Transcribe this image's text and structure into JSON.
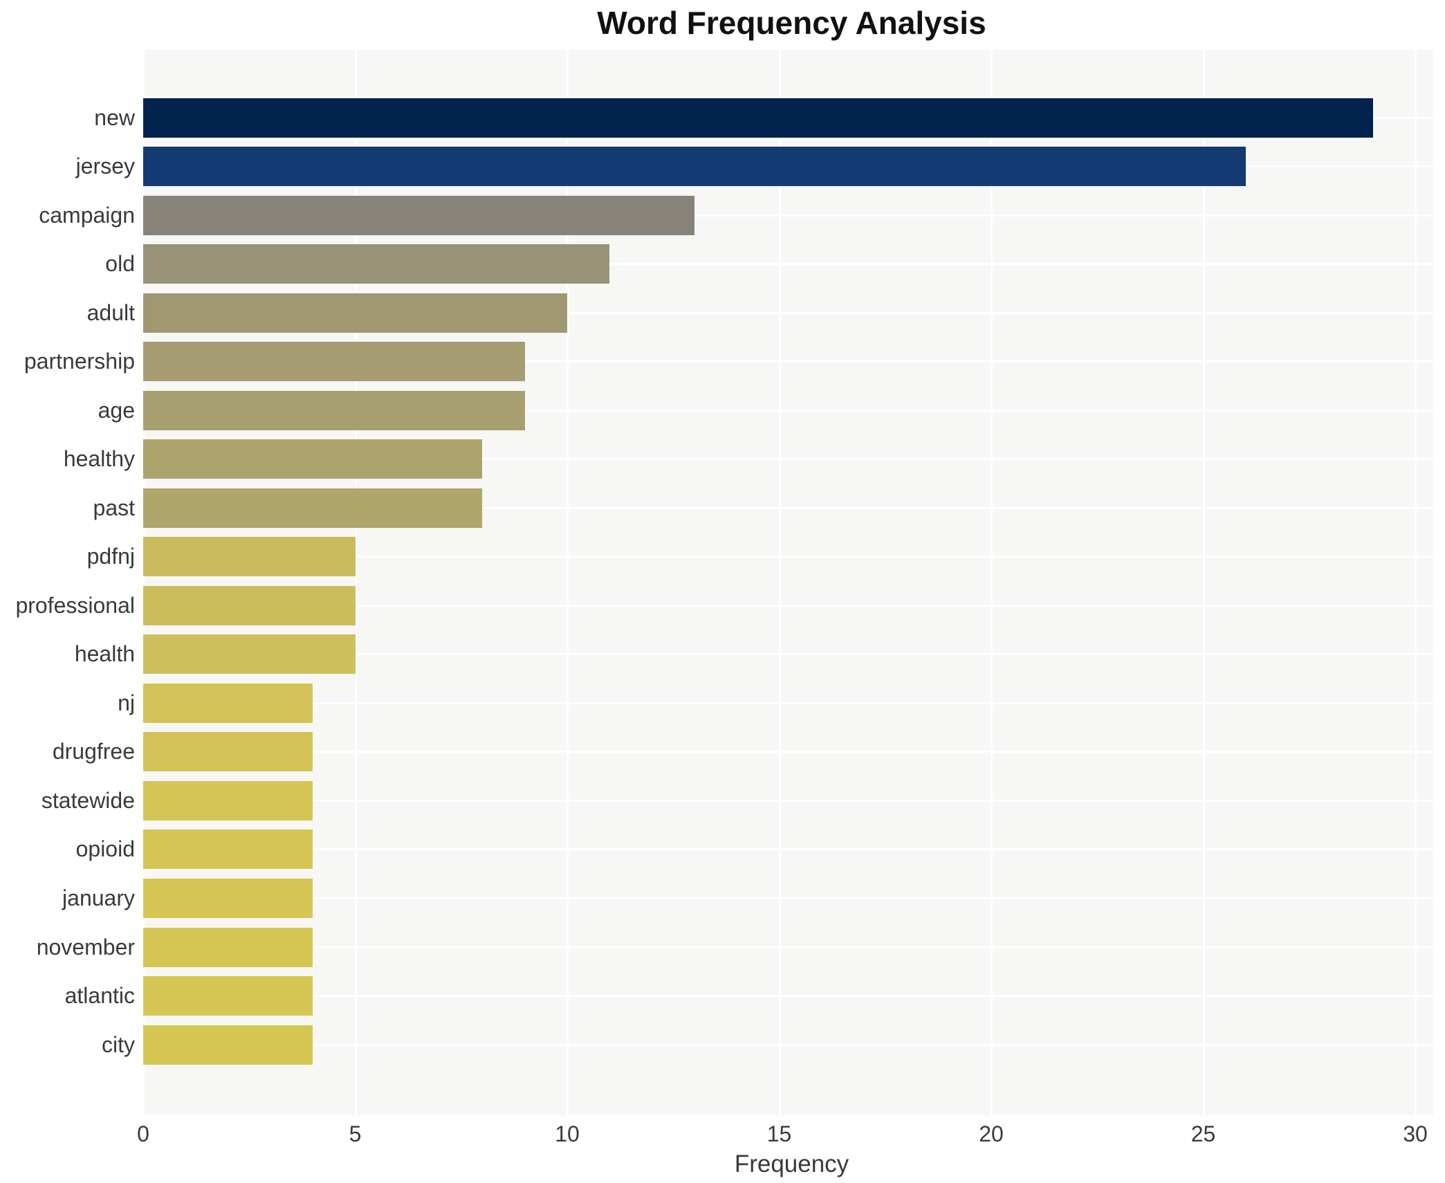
{
  "chart_data": {
    "type": "bar",
    "orientation": "horizontal",
    "title": "Word Frequency Analysis",
    "xlabel": "Frequency",
    "ylabel": "",
    "categories": [
      "new",
      "jersey",
      "campaign",
      "old",
      "adult",
      "partnership",
      "age",
      "healthy",
      "past",
      "pdfnj",
      "professional",
      "health",
      "nj",
      "drugfree",
      "statewide",
      "opioid",
      "january",
      "november",
      "atlantic",
      "city"
    ],
    "values": [
      29,
      26,
      13,
      11,
      10,
      9,
      9,
      8,
      8,
      5,
      5,
      5,
      4,
      4,
      4,
      4,
      4,
      4,
      4,
      4
    ],
    "bar_colors": [
      "#02234e",
      "#133a72",
      "#87837a",
      "#9a9276",
      "#a09873",
      "#a69d72",
      "#a89f71",
      "#ada36d",
      "#b0a66b",
      "#cabc5e",
      "#ccbe5d",
      "#cdbf5c",
      "#d2c358",
      "#d3c457",
      "#d4c556",
      "#d4c555",
      "#d5c655",
      "#d5c654",
      "#d6c654",
      "#d6c653"
    ],
    "x_ticks": [
      0,
      5,
      10,
      15,
      20,
      25,
      30
    ],
    "xlim": [
      0,
      30.4
    ],
    "grid": true,
    "legend": false,
    "plot_bg_color": "#f7f7f6",
    "grid_color": "#ffffff",
    "text_color": "#3a3a3a",
    "title_color": "#111111",
    "background_color": "#ffffff"
  }
}
